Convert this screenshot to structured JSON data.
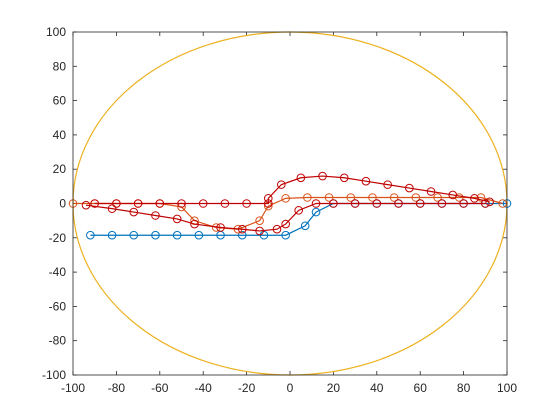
{
  "chart_data": {
    "type": "line",
    "xlim": [
      -100,
      100
    ],
    "ylim": [
      -100,
      100
    ],
    "x_ticks": [
      "-100",
      "-80",
      "-60",
      "-40",
      "-20",
      "0",
      "20",
      "40",
      "60",
      "80",
      "100"
    ],
    "y_ticks": [
      "100",
      "80",
      "60",
      "40",
      "20",
      "0",
      "-20",
      "-40",
      "-60",
      "-80",
      "-100"
    ],
    "grid": false,
    "legend": "none",
    "series": [
      {
        "color": "#EDB120",
        "marker": "none",
        "shape": "ellipse",
        "center": [
          0,
          0
        ],
        "radius_x": 100,
        "radius_y": 100
      },
      {
        "color": "#0072BD",
        "marker": "circle",
        "points": [
          [
            -92,
            -18.5
          ],
          [
            -82,
            -18.5
          ],
          [
            -72,
            -18.5
          ],
          [
            -62,
            -18.5
          ],
          [
            -52,
            -18.5
          ],
          [
            -42,
            -18.5
          ],
          [
            -32,
            -18.5
          ],
          [
            -22,
            -18.5
          ],
          [
            -12,
            -18.5
          ],
          [
            -2,
            -18.5
          ],
          [
            7,
            -13
          ],
          [
            12,
            -5
          ],
          [
            20,
            0
          ],
          [
            30,
            0
          ],
          [
            40,
            0
          ],
          [
            50,
            0
          ],
          [
            60,
            0
          ],
          [
            70,
            0
          ],
          [
            80,
            0
          ],
          [
            90,
            0
          ],
          [
            100,
            0
          ]
        ]
      },
      {
        "color": "#D95319",
        "marker": "circle",
        "points": [
          [
            -100,
            0
          ],
          [
            -90,
            0
          ],
          [
            -80,
            0
          ],
          [
            -70,
            0
          ],
          [
            -60,
            0
          ],
          [
            -50,
            -2
          ],
          [
            -44,
            -10
          ],
          [
            -34,
            -14
          ],
          [
            -24,
            -15
          ],
          [
            -14,
            -10
          ],
          [
            -10,
            -1.5
          ],
          [
            -2,
            3
          ],
          [
            8,
            3.5
          ],
          [
            18,
            3.5
          ],
          [
            28,
            3.5
          ],
          [
            38,
            3.5
          ],
          [
            48,
            3.5
          ],
          [
            58,
            3.5
          ],
          [
            68,
            3.5
          ],
          [
            78,
            3.5
          ],
          [
            88,
            3.5
          ],
          [
            98,
            0
          ]
        ]
      },
      {
        "color": "#C00000",
        "marker": "circle",
        "points": [
          [
            -94,
            -1
          ],
          [
            -82,
            -3
          ],
          [
            -72,
            -5
          ],
          [
            -62,
            -7
          ],
          [
            -52,
            -9
          ],
          [
            -44,
            -12
          ],
          [
            -32,
            -14
          ],
          [
            -22,
            -15
          ],
          [
            -14,
            -16
          ],
          [
            -6,
            -15
          ],
          [
            -2,
            -12
          ],
          [
            4,
            -4
          ],
          [
            12,
            0
          ],
          [
            20,
            0
          ],
          [
            30,
            0
          ],
          [
            40,
            0
          ],
          [
            50,
            0
          ],
          [
            60,
            0
          ],
          [
            70,
            0
          ],
          [
            80,
            0
          ],
          [
            90,
            0
          ]
        ]
      },
      {
        "color": "#C00000",
        "marker": "circle",
        "points": [
          [
            -90,
            0
          ],
          [
            -80,
            0
          ],
          [
            -70,
            0
          ],
          [
            -60,
            0
          ],
          [
            -50,
            0
          ],
          [
            -40,
            0
          ],
          [
            -30,
            0
          ],
          [
            -20,
            0
          ],
          [
            -10,
            0
          ],
          [
            -10,
            3
          ],
          [
            -4,
            11
          ],
          [
            5,
            15
          ],
          [
            15,
            16
          ],
          [
            25,
            15
          ],
          [
            35,
            13
          ],
          [
            45,
            11
          ],
          [
            55,
            9
          ],
          [
            65,
            7
          ],
          [
            75,
            5
          ],
          [
            85,
            3
          ],
          [
            92,
            1
          ]
        ]
      }
    ]
  }
}
